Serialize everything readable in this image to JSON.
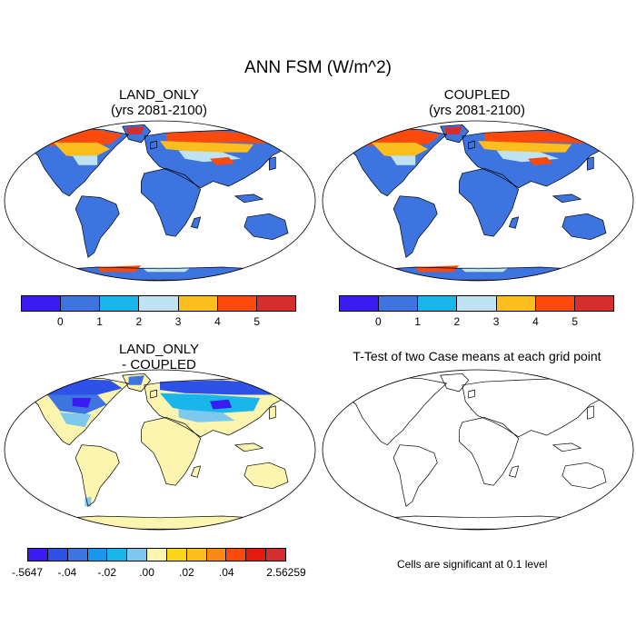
{
  "figure": {
    "title": "ANN FSM (W/m^2)"
  },
  "panels": {
    "land_only": {
      "title_line1": "LAND_ONLY",
      "title_line2": "(yrs 2081-2100)"
    },
    "coupled": {
      "title_line1": "COUPLED",
      "title_line2": "(yrs 2081-2100)"
    },
    "difference": {
      "title_line1": "LAND_ONLY",
      "title_line2": "- COUPLED"
    },
    "ttest": {
      "title": "T-Test of two Case means at each grid point",
      "note": "Cells are significant at 0.1 level"
    }
  },
  "colorbar_main": {
    "colors": [
      "#3a1cf0",
      "#3e74df",
      "#19b6ec",
      "#bfe3f2",
      "#fbbe1e",
      "#fb4a0c",
      "#d52e2e"
    ],
    "labels": [
      "0",
      "1",
      "2",
      "3",
      "4",
      "5"
    ]
  },
  "colorbar_diff": {
    "colors": [
      "#3a1cf0",
      "#2e52e8",
      "#3e74df",
      "#1a96ee",
      "#19b6ec",
      "#7ec8ee",
      "#fcf5b0",
      "#fbd41c",
      "#fbbe1e",
      "#fb8a14",
      "#fb4a0c",
      "#e41a0e",
      "#d52e2e"
    ],
    "labels": [
      "-.5647",
      "-.04",
      "-.02",
      ".00",
      ".02",
      ".04",
      "2.56259"
    ]
  },
  "map_colors": {
    "ocean": "#ffffff",
    "land_fill_main": "#3e74df",
    "land_fill_diff": "#fcf5b0",
    "coast": "#000000"
  }
}
